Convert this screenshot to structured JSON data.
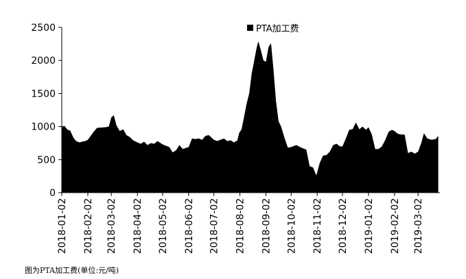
{
  "chart_data": {
    "type": "area",
    "title": "",
    "xlabel": "",
    "ylabel": "",
    "ylim": [
      0,
      2500
    ],
    "yticks": [
      0,
      500,
      1000,
      1500,
      2000,
      2500
    ],
    "xticks": [
      "2018-01-02",
      "2018-02-02",
      "2018-03-02",
      "2018-04-02",
      "2018-05-02",
      "2018-06-02",
      "2018-07-02",
      "2018-08-02",
      "2018-09-02",
      "2018-10-02",
      "2018-11-02",
      "2018-12-02",
      "2019-01-02",
      "2019-02-02",
      "2019-03-02"
    ],
    "xlim": [
      "2018-01-02",
      "2019-03-28"
    ],
    "legend": "top-center",
    "grid": false,
    "colors": {
      "fill": "#000000"
    },
    "series": [
      {
        "name": "PTA加工费",
        "points": [
          [
            "2018-01-02",
            1000
          ],
          [
            "2018-01-05",
            1010
          ],
          [
            "2018-01-09",
            950
          ],
          [
            "2018-01-12",
            940
          ],
          [
            "2018-01-16",
            830
          ],
          [
            "2018-01-19",
            780
          ],
          [
            "2018-01-23",
            760
          ],
          [
            "2018-01-26",
            770
          ],
          [
            "2018-01-30",
            780
          ],
          [
            "2018-02-02",
            800
          ],
          [
            "2018-02-06",
            870
          ],
          [
            "2018-02-09",
            920
          ],
          [
            "2018-02-13",
            980
          ],
          [
            "2018-02-23",
            990
          ],
          [
            "2018-02-27",
            1000
          ],
          [
            "2018-03-02",
            1140
          ],
          [
            "2018-03-05",
            1170
          ],
          [
            "2018-03-08",
            1020
          ],
          [
            "2018-03-12",
            930
          ],
          [
            "2018-03-16",
            960
          ],
          [
            "2018-03-20",
            870
          ],
          [
            "2018-03-24",
            840
          ],
          [
            "2018-03-28",
            790
          ],
          [
            "2018-04-02",
            760
          ],
          [
            "2018-04-06",
            740
          ],
          [
            "2018-04-10",
            770
          ],
          [
            "2018-04-14",
            720
          ],
          [
            "2018-04-18",
            750
          ],
          [
            "2018-04-22",
            740
          ],
          [
            "2018-04-26",
            780
          ],
          [
            "2018-05-02",
            730
          ],
          [
            "2018-05-06",
            710
          ],
          [
            "2018-05-10",
            690
          ],
          [
            "2018-05-14",
            610
          ],
          [
            "2018-05-18",
            640
          ],
          [
            "2018-05-22",
            720
          ],
          [
            "2018-05-26",
            660
          ],
          [
            "2018-06-02",
            690
          ],
          [
            "2018-06-06",
            820
          ],
          [
            "2018-06-10",
            810
          ],
          [
            "2018-06-14",
            820
          ],
          [
            "2018-06-18",
            800
          ],
          [
            "2018-06-22",
            860
          ],
          [
            "2018-06-26",
            870
          ],
          [
            "2018-07-02",
            800
          ],
          [
            "2018-07-06",
            780
          ],
          [
            "2018-07-10",
            800
          ],
          [
            "2018-07-14",
            820
          ],
          [
            "2018-07-18",
            780
          ],
          [
            "2018-07-22",
            790
          ],
          [
            "2018-07-26",
            760
          ],
          [
            "2018-07-30",
            790
          ],
          [
            "2018-08-01",
            900
          ],
          [
            "2018-08-04",
            960
          ],
          [
            "2018-08-07",
            1150
          ],
          [
            "2018-08-10",
            1350
          ],
          [
            "2018-08-13",
            1500
          ],
          [
            "2018-08-16",
            1800
          ],
          [
            "2018-08-19",
            2000
          ],
          [
            "2018-08-22",
            2200
          ],
          [
            "2018-08-24",
            2290
          ],
          [
            "2018-08-27",
            2150
          ],
          [
            "2018-08-30",
            2000
          ],
          [
            "2018-09-02",
            1980
          ],
          [
            "2018-09-05",
            2200
          ],
          [
            "2018-09-08",
            2260
          ],
          [
            "2018-09-11",
            1850
          ],
          [
            "2018-09-14",
            1380
          ],
          [
            "2018-09-17",
            1080
          ],
          [
            "2018-09-20",
            1000
          ],
          [
            "2018-09-24",
            830
          ],
          [
            "2018-09-28",
            680
          ],
          [
            "2018-10-02",
            690
          ],
          [
            "2018-10-08",
            720
          ],
          [
            "2018-10-14",
            680
          ],
          [
            "2018-10-20",
            650
          ],
          [
            "2018-10-24",
            400
          ],
          [
            "2018-10-28",
            380
          ],
          [
            "2018-11-01",
            260
          ],
          [
            "2018-11-05",
            450
          ],
          [
            "2018-11-09",
            560
          ],
          [
            "2018-11-13",
            570
          ],
          [
            "2018-11-17",
            620
          ],
          [
            "2018-11-21",
            720
          ],
          [
            "2018-11-25",
            740
          ],
          [
            "2018-11-29",
            700
          ],
          [
            "2018-12-02",
            700
          ],
          [
            "2018-12-06",
            820
          ],
          [
            "2018-12-10",
            950
          ],
          [
            "2018-12-14",
            960
          ],
          [
            "2018-12-18",
            1060
          ],
          [
            "2018-12-22",
            960
          ],
          [
            "2018-12-26",
            1000
          ],
          [
            "2018-12-30",
            950
          ],
          [
            "2019-01-02",
            990
          ],
          [
            "2019-01-06",
            880
          ],
          [
            "2019-01-10",
            660
          ],
          [
            "2019-01-14",
            660
          ],
          [
            "2019-01-18",
            700
          ],
          [
            "2019-01-22",
            800
          ],
          [
            "2019-01-26",
            920
          ],
          [
            "2019-01-30",
            950
          ],
          [
            "2019-02-02",
            930
          ],
          [
            "2019-02-06",
            890
          ],
          [
            "2019-02-10",
            880
          ],
          [
            "2019-02-14",
            880
          ],
          [
            "2019-02-18",
            600
          ],
          [
            "2019-02-22",
            620
          ],
          [
            "2019-02-26",
            590
          ],
          [
            "2019-03-02",
            620
          ],
          [
            "2019-03-06",
            760
          ],
          [
            "2019-03-09",
            900
          ],
          [
            "2019-03-13",
            820
          ],
          [
            "2019-03-18",
            800
          ],
          [
            "2019-03-23",
            810
          ],
          [
            "2019-03-26",
            860
          ]
        ]
      }
    ]
  },
  "caption": "图为PTA加工费(单位:元/吨)"
}
